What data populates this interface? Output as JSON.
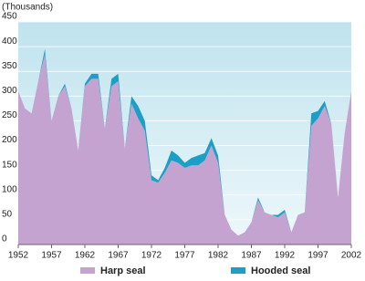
{
  "chart_data": {
    "type": "stacked-area",
    "y_label": "(Thousands)",
    "x": [
      1952,
      1953,
      1954,
      1955,
      1956,
      1957,
      1958,
      1959,
      1960,
      1961,
      1962,
      1963,
      1964,
      1965,
      1966,
      1967,
      1968,
      1969,
      1970,
      1971,
      1972,
      1973,
      1974,
      1975,
      1976,
      1977,
      1978,
      1979,
      1980,
      1981,
      1982,
      1983,
      1984,
      1985,
      1986,
      1987,
      1988,
      1989,
      1990,
      1991,
      1992,
      1993,
      1994,
      1995,
      1996,
      1997,
      1998,
      1999,
      2000,
      2001,
      2002
    ],
    "series": [
      {
        "name": "Harp seal",
        "color": "#c4a3d1",
        "values": [
          310,
          275,
          265,
          330,
          385,
          250,
          300,
          320,
          275,
          190,
          320,
          335,
          335,
          235,
          320,
          330,
          195,
          285,
          255,
          230,
          130,
          125,
          145,
          170,
          165,
          155,
          160,
          160,
          170,
          200,
          165,
          60,
          30,
          18,
          25,
          45,
          90,
          65,
          60,
          55,
          65,
          25,
          60,
          65,
          240,
          255,
          280,
          245,
          95,
          225,
          310
        ]
      },
      {
        "name": "Hooded seal",
        "color": "#1c9fc6",
        "values": [
          0,
          0,
          0,
          0,
          10,
          0,
          0,
          5,
          0,
          0,
          5,
          10,
          10,
          0,
          15,
          15,
          0,
          15,
          25,
          20,
          10,
          5,
          10,
          20,
          15,
          10,
          15,
          20,
          15,
          15,
          15,
          0,
          0,
          0,
          0,
          0,
          5,
          0,
          0,
          5,
          5,
          0,
          0,
          0,
          25,
          15,
          10,
          0,
          0,
          0,
          0
        ]
      }
    ],
    "xlim": [
      1952,
      2002
    ],
    "xticks": [
      1952,
      1957,
      1962,
      1967,
      1972,
      1977,
      1982,
      1987,
      1992,
      1997,
      2002
    ],
    "ylim": [
      0,
      450
    ],
    "yticks": [
      0,
      50,
      100,
      150,
      200,
      250,
      300,
      350,
      400,
      450
    ],
    "grid": true
  }
}
